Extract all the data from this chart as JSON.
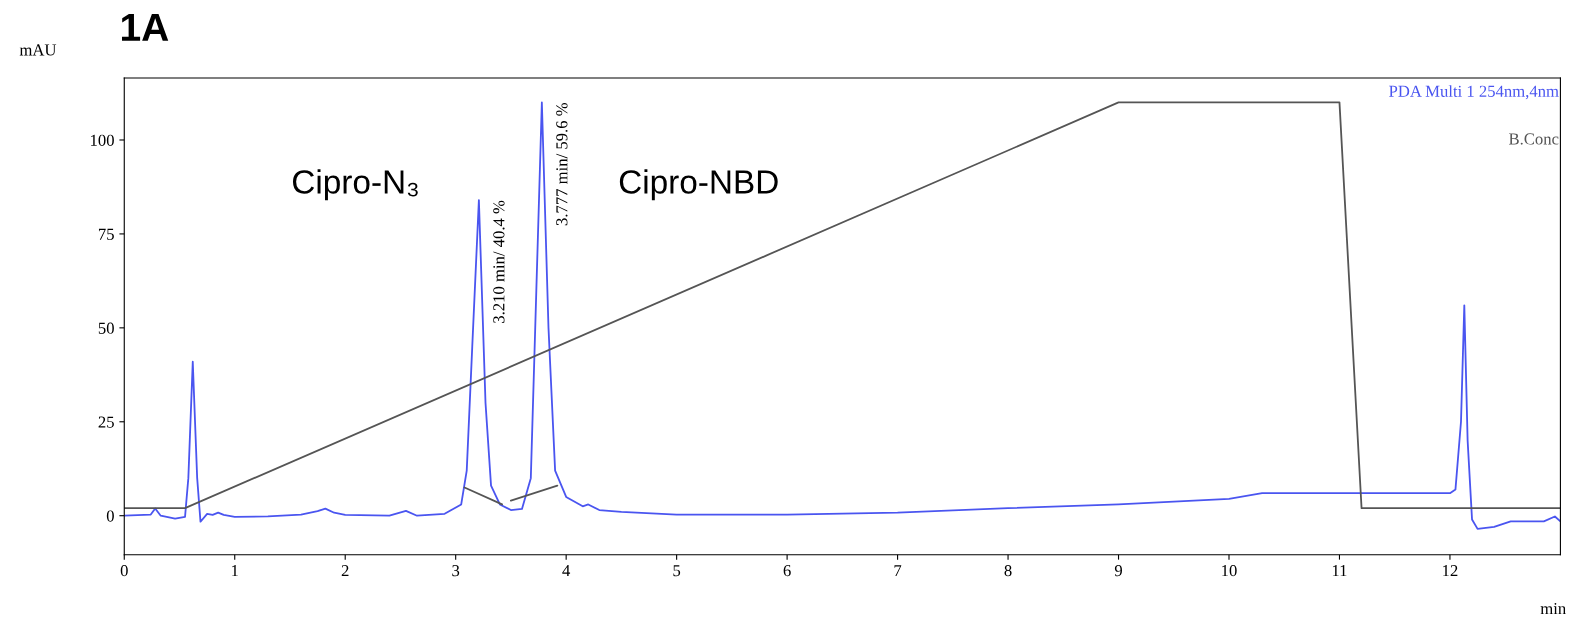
{
  "chart_data": {
    "type": "line",
    "title": "1A",
    "xlabel": "min",
    "ylabel": "mAU",
    "xlim": [
      0,
      13
    ],
    "ylim": [
      -10.4,
      116.5
    ],
    "xticks": [
      0,
      1,
      2,
      3,
      4,
      5,
      6,
      7,
      8,
      9,
      10,
      11,
      12
    ],
    "yticks": [
      0,
      25,
      50,
      75,
      100
    ],
    "grid": false,
    "series": [
      {
        "name": "PDA Multi 1 254nm,4nm",
        "color": "#4a55f0",
        "x": [
          0,
          0.24,
          0.28,
          0.33,
          0.46,
          0.55,
          0.58,
          0.62,
          0.66,
          0.69,
          0.75,
          0.8,
          0.85,
          0.9,
          1.0,
          1.3,
          1.6,
          1.75,
          1.82,
          1.9,
          2.0,
          2.4,
          2.55,
          2.65,
          2.9,
          3.05,
          3.1,
          3.15,
          3.21,
          3.27,
          3.32,
          3.4,
          3.5,
          3.6,
          3.68,
          3.73,
          3.78,
          3.84,
          3.9,
          4.0,
          4.15,
          4.2,
          4.3,
          4.5,
          5.0,
          6.0,
          7.0,
          8.0,
          9.0,
          10.0,
          10.3,
          11.0,
          12.0,
          12.05,
          12.1,
          12.13,
          12.16,
          12.2,
          12.25,
          12.4,
          12.55,
          12.7,
          12.85,
          12.95,
          13.0
        ],
        "values": [
          0,
          0.3,
          1.9,
          0,
          -0.8,
          -0.3,
          10,
          41,
          10,
          -1.6,
          0.5,
          0.2,
          0.8,
          0.2,
          -0.3,
          -0.2,
          0.3,
          1.2,
          1.9,
          0.8,
          0.2,
          0,
          1.3,
          0,
          0.5,
          3,
          12,
          45,
          84,
          30,
          8,
          3,
          1.5,
          1.8,
          10,
          60,
          110,
          50,
          12,
          5,
          2.5,
          3,
          1.5,
          1,
          0.3,
          0.3,
          0.8,
          2,
          3,
          4.5,
          6,
          6,
          6,
          7,
          25,
          56,
          20,
          -1,
          -3.5,
          -3,
          -1.5,
          -1.5,
          -1.5,
          -0.2,
          -1.5
        ]
      },
      {
        "name": "B.Conc",
        "color": "#555555",
        "x": [
          0,
          0.55,
          9,
          11,
          11.2,
          13
        ],
        "values": [
          2,
          2,
          110,
          110,
          2,
          2
        ]
      },
      {
        "color": "#555555",
        "x": [
          3.08,
          3.42,
          3.45,
          3.5,
          3.92
        ],
        "values": [
          7.5,
          3,
          null,
          4,
          8
        ]
      }
    ],
    "annotations": [
      "Cipro-N₃",
      "Cipro-NBD",
      {
        "text": "3.210 min/ 40.4 %",
        "x": 3.21,
        "y": 84
      },
      {
        "text": "3.777 min/ 59.6 %",
        "x": 3.78,
        "y": 110
      }
    ]
  }
}
